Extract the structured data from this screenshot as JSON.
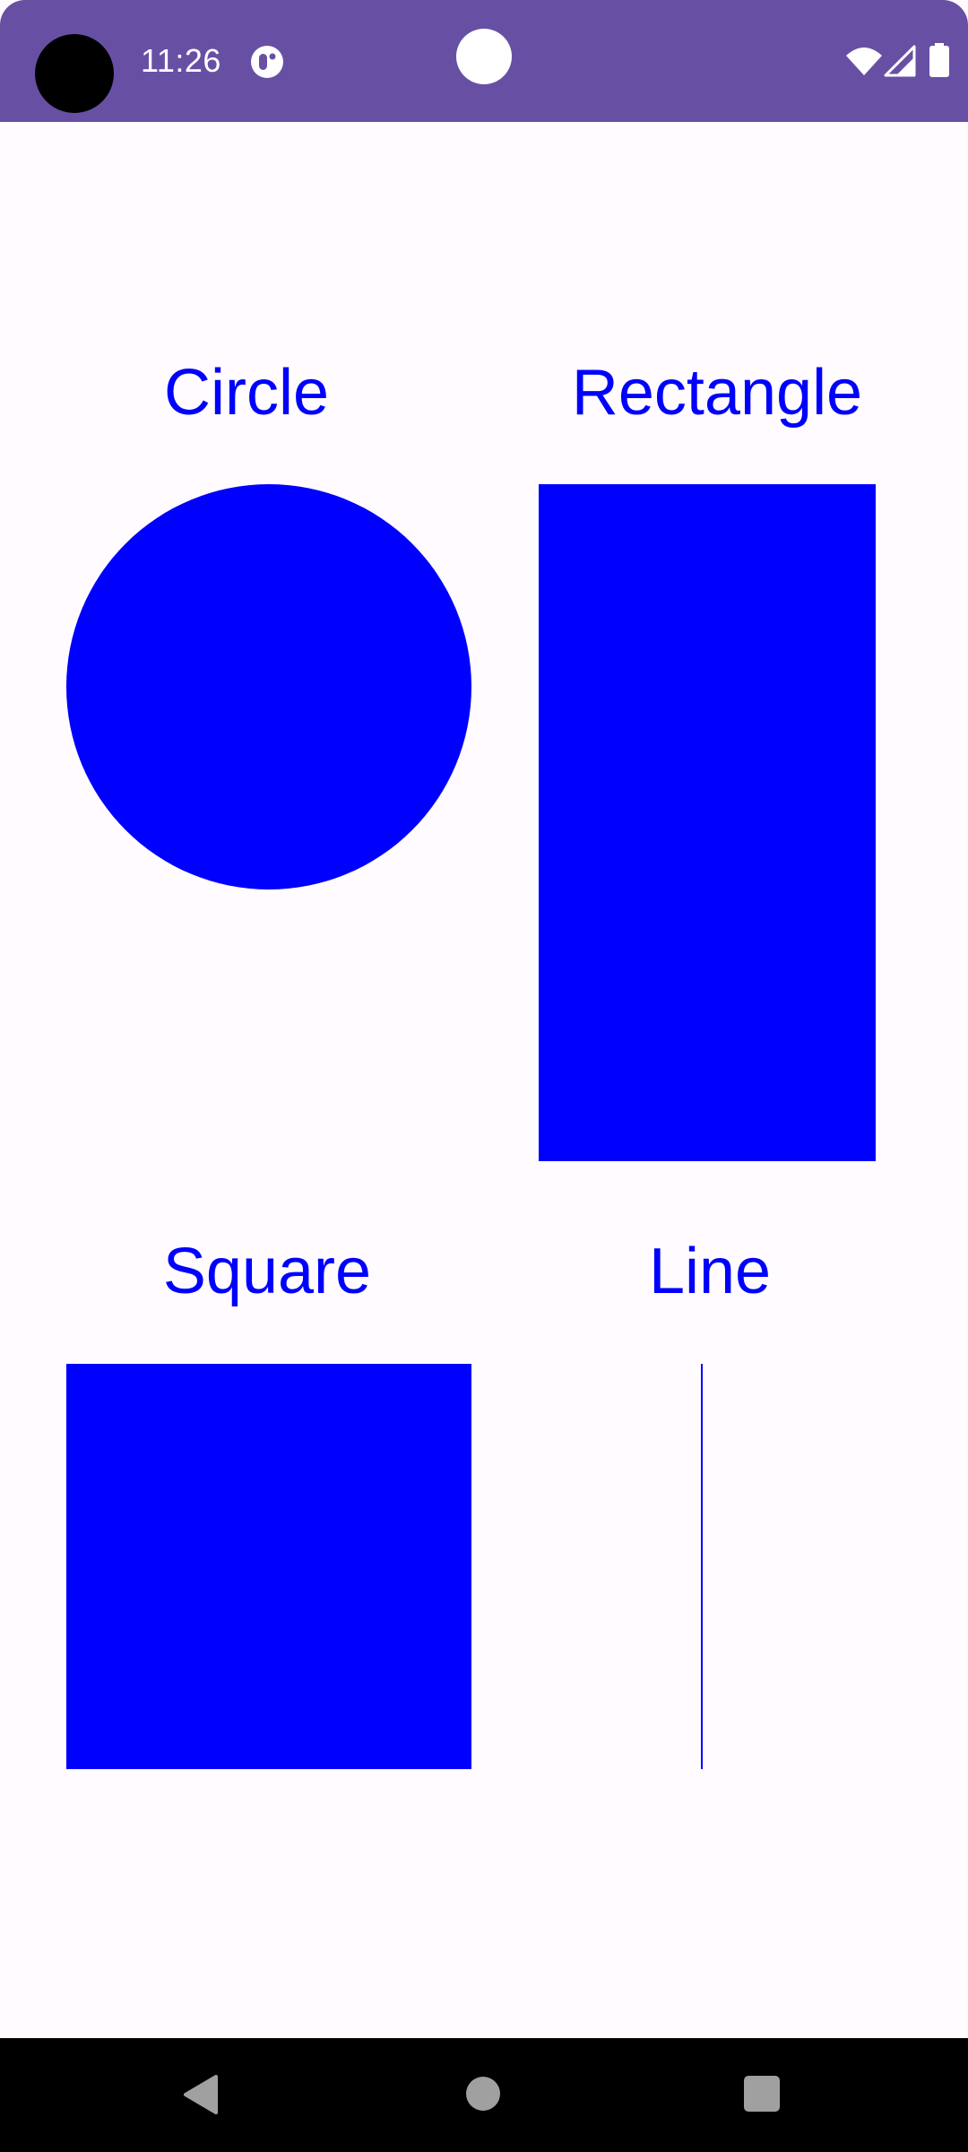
{
  "status_bar": {
    "time": "11:26",
    "background_color": "#6750a4",
    "icons": [
      "camera-cutout",
      "notification-app-icon",
      "center-indicator-dot",
      "wifi-icon",
      "cellular-signal-icon",
      "battery-icon"
    ]
  },
  "shapes": {
    "circle_label": "Circle",
    "rectangle_label": "Rectangle",
    "square_label": "Square",
    "line_label": "Line",
    "shape_color": "#0000ff"
  },
  "nav_bar": {
    "icons": [
      "back-icon",
      "home-icon",
      "recents-icon"
    ]
  }
}
